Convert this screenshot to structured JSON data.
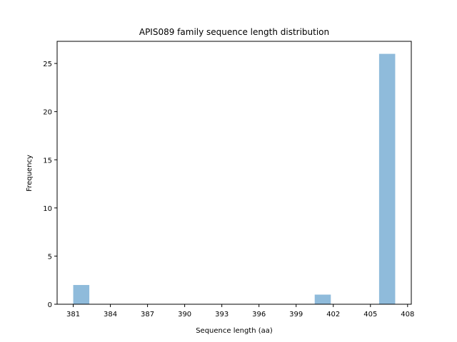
{
  "chart_data": {
    "type": "bar",
    "title": "APIS089 family sequence length distribution",
    "xlabel": "Sequence length (aa)",
    "ylabel": "Frequency",
    "xlim": [
      379.7,
      408.3
    ],
    "ylim": [
      0,
      27.3
    ],
    "xticks": [
      381,
      384,
      387,
      390,
      393,
      396,
      399,
      402,
      405,
      408
    ],
    "yticks": [
      0,
      5,
      10,
      15,
      20,
      25
    ],
    "bin_width": 1.3,
    "bars": [
      {
        "x0": 381.0,
        "x1": 382.3,
        "value": 2
      },
      {
        "x0": 400.5,
        "x1": 401.8,
        "value": 1
      },
      {
        "x0": 405.7,
        "x1": 407.0,
        "value": 26
      }
    ],
    "color": "#8fbbdb",
    "grid": false,
    "legend": null
  }
}
